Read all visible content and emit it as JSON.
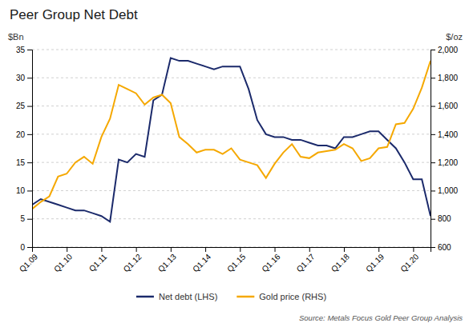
{
  "chart_data": {
    "type": "line",
    "title": "Peer Group Net Debt",
    "ylabel": "$Bn",
    "y2label": "$/oz",
    "source": "Source: Metals Focus Gold Peer Group Analysis",
    "categories": [
      "Q1.09",
      null,
      null,
      null,
      "Q1.10",
      null,
      null,
      null,
      "Q1.11",
      null,
      null,
      null,
      "Q1.12",
      null,
      null,
      null,
      "Q1.13",
      null,
      null,
      null,
      "Q1.14",
      null,
      null,
      null,
      "Q1.15",
      null,
      null,
      null,
      "Q1.16",
      null,
      null,
      null,
      "Q1.17",
      null,
      null,
      null,
      "Q1.18",
      null,
      null,
      null,
      "Q1.19",
      null,
      null,
      null,
      "Q1.20",
      null,
      null
    ],
    "series": [
      {
        "name": "Net debt (LHS)",
        "color": "#1b2a6b",
        "values": [
          7.5,
          8.5,
          8.0,
          7.5,
          7.0,
          6.5,
          6.5,
          6.0,
          5.5,
          4.5,
          15.5,
          15.0,
          16.5,
          16.0,
          26.0,
          27.0,
          33.5,
          33.0,
          33.0,
          32.5,
          32.0,
          31.5,
          32.0,
          32.0,
          32.0,
          28.0,
          22.5,
          20.0,
          19.5,
          19.5,
          19.0,
          19.0,
          18.5,
          18.0,
          18.0,
          17.5,
          19.5,
          19.5,
          20.0,
          20.5,
          20.5,
          19.0,
          17.5,
          15.0,
          12.0,
          12.0,
          5.5
        ]
      },
      {
        "name": "Gold price (RHS)",
        "color": "#f5a800",
        "axis": "y2",
        "values": [
          870,
          920,
          960,
          1100,
          1120,
          1200,
          1240,
          1190,
          1380,
          1510,
          1750,
          1720,
          1690,
          1610,
          1660,
          1680,
          1620,
          1380,
          1330,
          1270,
          1290,
          1290,
          1260,
          1300,
          1220,
          1200,
          1180,
          1090,
          1190,
          1270,
          1330,
          1240,
          1230,
          1270,
          1280,
          1290,
          1330,
          1300,
          1210,
          1230,
          1300,
          1310,
          1470,
          1480,
          1580,
          1730,
          1920
        ]
      }
    ],
    "ylim": [
      0,
      35
    ],
    "yticks": [
      0,
      5,
      10,
      15,
      20,
      25,
      30,
      35
    ],
    "y2lim": [
      600,
      2000
    ],
    "y2ticks": [
      600,
      800,
      {
        "value": 1000,
        "label": "1,000"
      },
      {
        "value": 1200,
        "label": "1,200"
      },
      {
        "value": 1400,
        "label": "1,400"
      },
      {
        "value": 1600,
        "label": "1,600"
      },
      {
        "value": 1800,
        "label": "1,800"
      },
      {
        "value": 2000,
        "label": "2,000"
      }
    ],
    "grid": true,
    "legend": "bottom"
  }
}
